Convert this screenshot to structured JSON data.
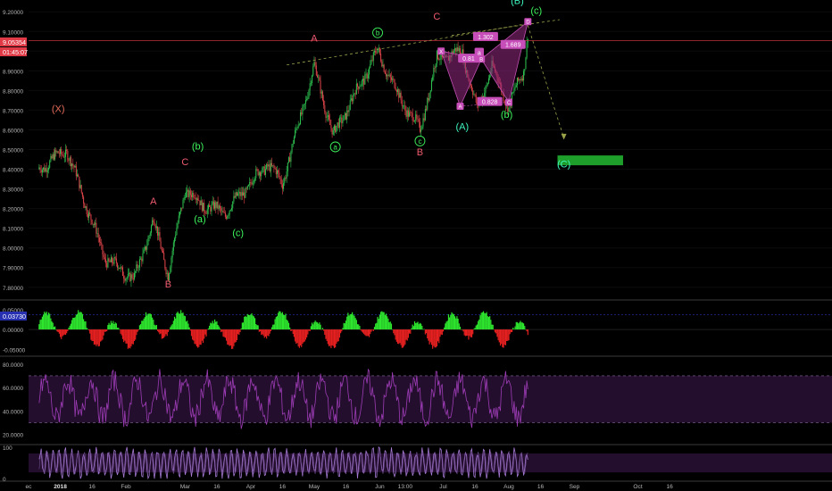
{
  "chart_data": {
    "type": "candlestick",
    "instrument_price": {
      "last_price": "9.05354",
      "countdown": "01:45:07",
      "y_ticks": [
        "9.20000",
        "9.10000",
        "9.00000",
        "8.90000",
        "8.80000",
        "8.70000",
        "8.60000",
        "8.50000",
        "8.40000",
        "8.30000",
        "8.20000",
        "8.10000",
        "8.00000",
        "7.90000",
        "7.80000"
      ],
      "ylim": [
        7.74,
        9.26
      ],
      "anchors": [
        {
          "date": "2017-12-22",
          "price": 8.4
        },
        {
          "date": "2018-01-04",
          "price": 8.5
        },
        {
          "date": "2018-01-22",
          "price": 7.95
        },
        {
          "date": "2018-02-05",
          "price": 7.84
        },
        {
          "date": "2018-02-14",
          "price": 8.14
        },
        {
          "date": "2018-02-21",
          "price": 7.87
        },
        {
          "date": "2018-03-01",
          "price": 8.3
        },
        {
          "date": "2018-03-09",
          "price": 8.22
        },
        {
          "date": "2018-03-20",
          "price": 8.18
        },
        {
          "date": "2018-04-09",
          "price": 8.43
        },
        {
          "date": "2018-04-16",
          "price": 8.33
        },
        {
          "date": "2018-05-01",
          "price": 8.92
        },
        {
          "date": "2018-05-10",
          "price": 8.57
        },
        {
          "date": "2018-05-31",
          "price": 9.0
        },
        {
          "date": "2018-06-10",
          "price": 8.77
        },
        {
          "date": "2018-06-20",
          "price": 8.6
        },
        {
          "date": "2018-06-28",
          "price": 8.96
        },
        {
          "date": "2018-07-10",
          "price": 9.0
        },
        {
          "date": "2018-07-17",
          "price": 8.7
        },
        {
          "date": "2018-07-24",
          "price": 8.92
        },
        {
          "date": "2018-08-01",
          "price": 8.72
        },
        {
          "date": "2018-08-08",
          "price": 8.9
        },
        {
          "date": "2018-08-10",
          "price": 9.1
        }
      ]
    },
    "x_ticks": [
      "ec",
      "2018",
      "16",
      "Feb",
      "Mar",
      "16",
      "Apr",
      "16",
      "May",
      "16",
      "Jun",
      "13:00",
      "Jul",
      "16",
      "Aug",
      "16",
      "Sep",
      "Oct",
      "16"
    ],
    "elliott_labels": [
      {
        "text": "(X)",
        "color": "#e46b5a",
        "date": "2017-12-31",
        "price": 8.69
      },
      {
        "text": "A",
        "color": "#ef5b6f",
        "date": "2018-02-14",
        "price": 8.22
      },
      {
        "text": "B",
        "color": "#ef5b6f",
        "date": "2018-02-21",
        "price": 7.8
      },
      {
        "text": "C",
        "color": "#ef5b6f",
        "date": "2018-03-01",
        "price": 8.42
      },
      {
        "text": "(b)",
        "color": "#3df55c",
        "date": "2018-03-07",
        "price": 8.5
      },
      {
        "text": "(a)",
        "color": "#3df55c",
        "date": "2018-03-08",
        "price": 8.13
      },
      {
        "text": "(c)",
        "color": "#3df55c",
        "date": "2018-03-26",
        "price": 8.06
      },
      {
        "text": "A",
        "color": "#ef5b6f",
        "date": "2018-05-01",
        "price": 9.05
      },
      {
        "text": "a",
        "color": "#3df55c",
        "date": "2018-05-11",
        "price": 8.5,
        "circled": true
      },
      {
        "text": "b",
        "color": "#3df55c",
        "date": "2018-05-31",
        "price": 9.08,
        "circled": true
      },
      {
        "text": "c",
        "color": "#3df55c",
        "date": "2018-06-20",
        "price": 8.53,
        "circled": true
      },
      {
        "text": "B",
        "color": "#ef5b6f",
        "date": "2018-06-20",
        "price": 8.47
      },
      {
        "text": "C",
        "color": "#ef5b6f",
        "date": "2018-06-28",
        "price": 9.16
      },
      {
        "text": "(A)",
        "color": "#3df5c0",
        "date": "2018-07-10",
        "price": 8.6
      },
      {
        "text": "(B)",
        "color": "#3df5c0",
        "date": "2018-08-05",
        "price": 9.24
      },
      {
        "text": "(c)",
        "color": "#3df55c",
        "date": "2018-08-14",
        "price": 9.19
      },
      {
        "text": "(b)",
        "color": "#3df55c",
        "date": "2018-07-31",
        "price": 8.66
      },
      {
        "text": "(C)",
        "color": "#3df5c0",
        "date": "2018-08-27",
        "price": 8.41
      }
    ],
    "harmonic_pattern": {
      "name": "bat-like XABCD",
      "points": [
        {
          "label": "X",
          "date": "2018-06-30",
          "price": 9.0
        },
        {
          "label": "A",
          "date": "2018-07-09",
          "price": 8.72
        },
        {
          "label": "B",
          "date": "2018-07-19",
          "price": 8.96
        },
        {
          "label": "C",
          "date": "2018-08-01",
          "price": 8.74
        },
        {
          "label": "D",
          "date": "2018-08-10",
          "price": 9.15
        }
      ],
      "ratios": [
        {
          "text": "1.302",
          "date": "2018-07-21",
          "price": 9.07
        },
        {
          "text": "0.81",
          "date": "2018-07-13",
          "price": 8.96
        },
        {
          "text": "1.689",
          "date": "2018-08-03",
          "price": 9.03
        },
        {
          "text": "0.828",
          "date": "2018-07-23",
          "price": 8.74
        },
        {
          "text": "a",
          "date": "2018-07-18",
          "price": 8.99
        }
      ]
    },
    "target_box": {
      "from_date": "2018-08-24",
      "to_date": "2018-09-24",
      "high": 8.47,
      "low": 8.42,
      "color": "#1e9e2a"
    },
    "macd": {
      "value": "0.03730",
      "y_ticks": [
        "0.05000",
        "0.00000",
        "-0.05000"
      ],
      "ylim": [
        -0.065,
        0.072
      ],
      "color_pos": "#2ee62e",
      "color_neg": "#e62020"
    },
    "rsi": {
      "y_ticks": [
        "80.0000",
        "60.0000",
        "40.0000",
        "20.0000"
      ],
      "ylim": [
        12,
        86
      ],
      "upper": 70,
      "lower": 30,
      "color": "#9c3cb5"
    },
    "stoch": {
      "y_ticks": [
        "100",
        "0"
      ],
      "ylim": [
        -5,
        105
      ],
      "upper": 80,
      "lower": 20,
      "color": "#a77ad6"
    }
  }
}
